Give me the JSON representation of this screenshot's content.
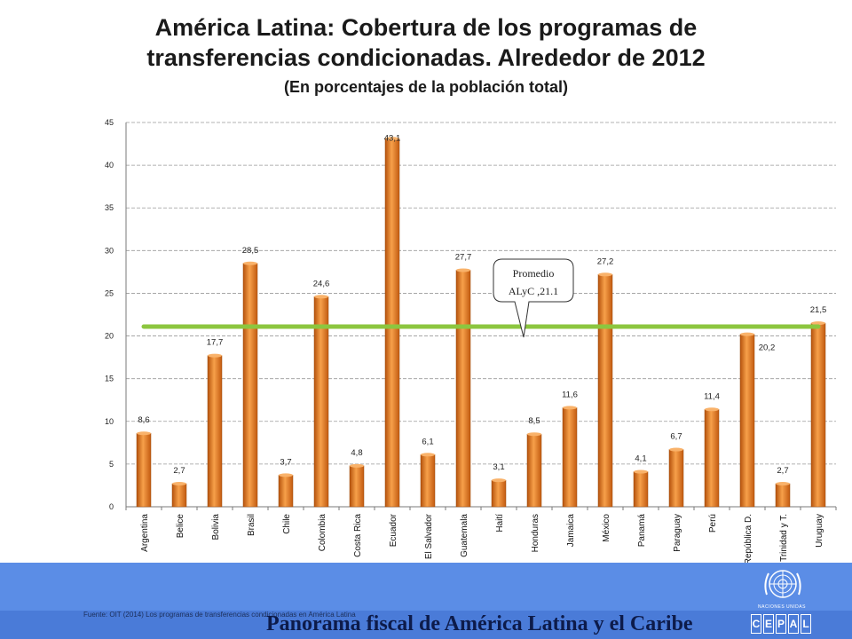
{
  "header": {
    "title_line1": "América Latina: Cobertura de los programas de",
    "title_line2": "transferencias condicionadas. Alrededor de 2012",
    "subtitle": "(En porcentajes de la población total)"
  },
  "chart_data": {
    "type": "bar",
    "categories": [
      "Argentina",
      "Belice",
      "Bolivia",
      "Brasil",
      "Chile",
      "Colombia",
      "Costa Rica",
      "Ecuador",
      "El Salvador",
      "Guatemala",
      "Haití",
      "Honduras",
      "Jamaica",
      "México",
      "Panamá",
      "Paraguay",
      "Perú",
      "República D.",
      "Trinidad y T.",
      "Uruguay"
    ],
    "values": [
      8.6,
      2.7,
      17.7,
      28.5,
      3.7,
      24.6,
      4.8,
      43.1,
      6.1,
      27.7,
      3.1,
      8.5,
      11.6,
      27.2,
      4.1,
      6.7,
      11.4,
      20.2,
      2.7,
      21.5
    ],
    "value_labels": [
      "8,6",
      "2,7",
      "17,7",
      "28,5",
      "3,7",
      "24,6",
      "4,8",
      "43,1",
      "6,1",
      "27,7",
      "3,1",
      "8,5",
      "11,6",
      "27,2",
      "4,1",
      "6,7",
      "11,4",
      "20,2",
      "2,7",
      "21,5"
    ],
    "ylim": [
      0,
      45
    ],
    "yticks": [
      0,
      5,
      10,
      15,
      20,
      25,
      30,
      35,
      40,
      45
    ],
    "grid": true,
    "bar_color": "#e8761e",
    "average": {
      "value": 21.1,
      "color": "#8cc63f",
      "label_line1": "Promedio",
      "label_line2": "ALyC ,21.1"
    }
  },
  "footer": {
    "source": "Fuente: OIT (2014) Los programas de transferencias condicionadas en América Latina",
    "title": "Panorama fiscal de América Latina y el Caribe",
    "un_label": "NACIONES UNIDAS",
    "cepal_letters": [
      "C",
      "E",
      "P",
      "A",
      "L"
    ],
    "band_color": "#5b8de6"
  }
}
